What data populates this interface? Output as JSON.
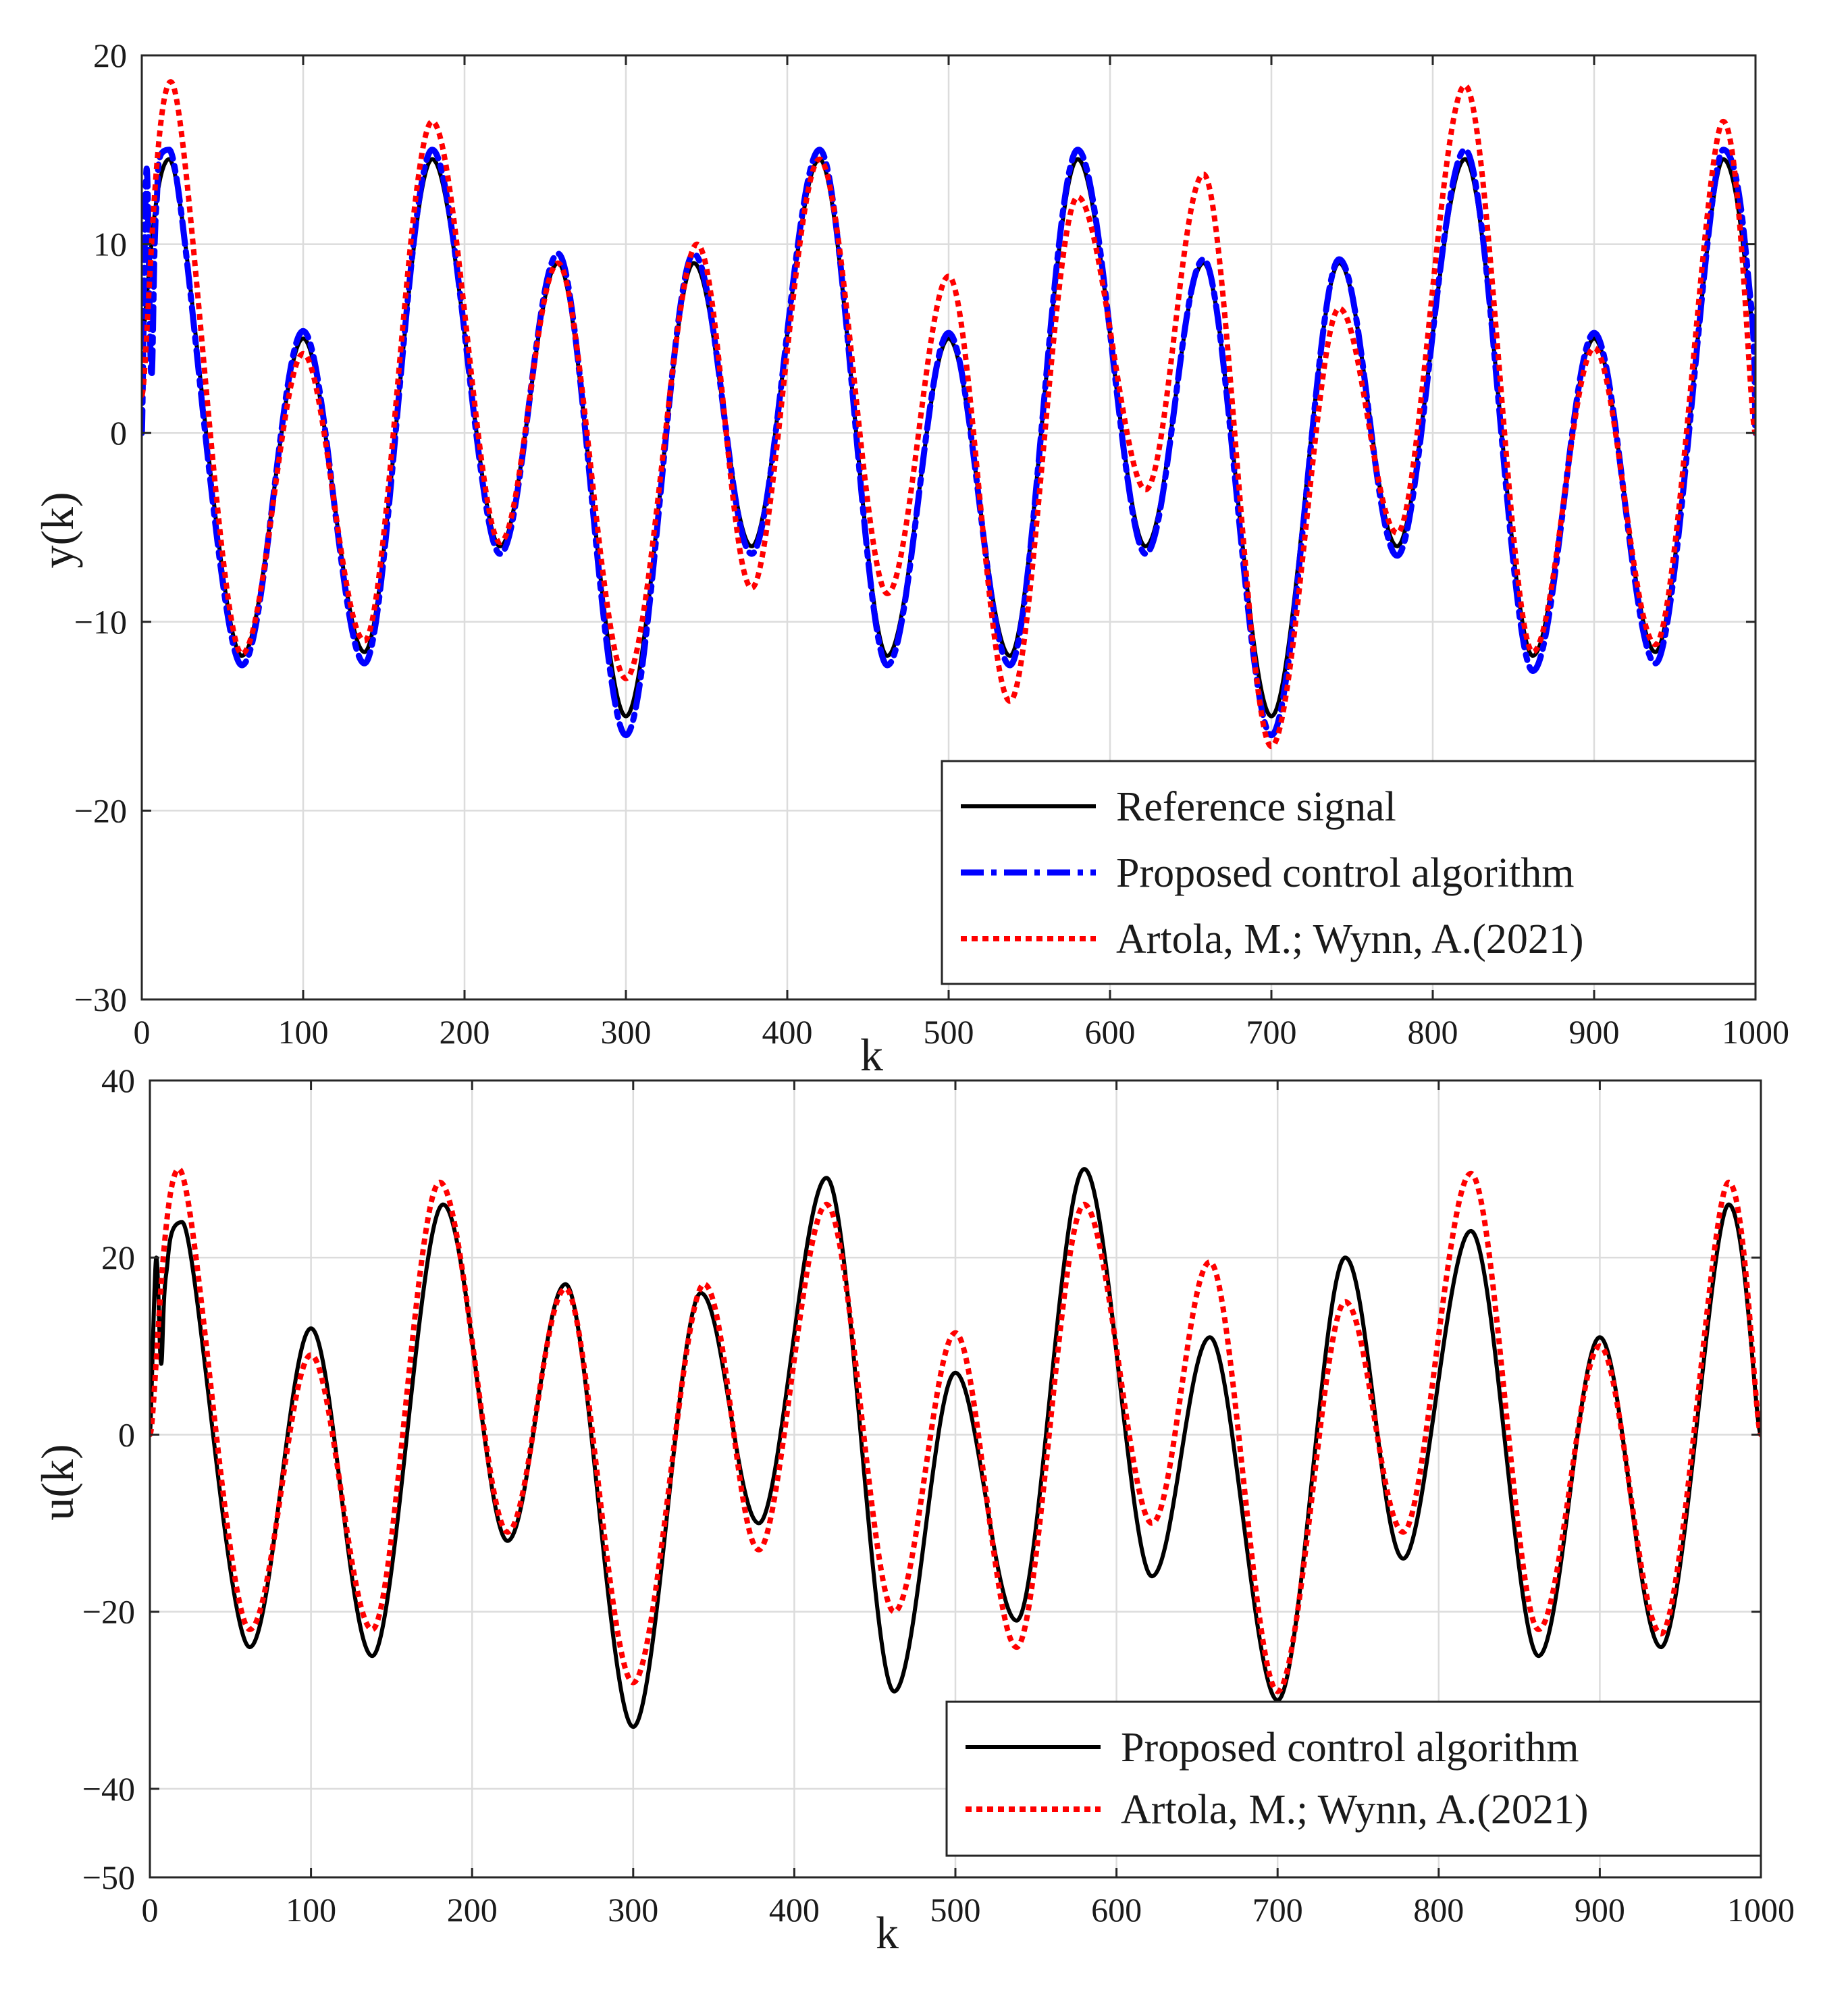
{
  "chart_data": [
    {
      "type": "line",
      "id": "top",
      "xlabel": "k",
      "ylabel": "y(k)",
      "xlim": [
        0,
        1000
      ],
      "ylim": [
        -30,
        20
      ],
      "xticks": [
        0,
        100,
        200,
        300,
        400,
        500,
        600,
        700,
        800,
        900,
        1000
      ],
      "yticks": [
        -30,
        -20,
        -10,
        0,
        10,
        20
      ],
      "grid": true,
      "legend_position": "bottom-right",
      "series": [
        {
          "name": "Reference signal",
          "color": "#000000",
          "style": "solid",
          "points": [
            [
              0,
              5
            ],
            [
              17,
              14.5
            ],
            [
              62,
              -11.8
            ],
            [
              100,
              5
            ],
            [
              138,
              -11.6
            ],
            [
              180,
              14.5
            ],
            [
              222,
              -6
            ],
            [
              258,
              9
            ],
            [
              300,
              -15
            ],
            [
              342,
              9
            ],
            [
              378,
              -6
            ],
            [
              420,
              14.5
            ],
            [
              462,
              -11.8
            ],
            [
              500,
              5
            ],
            [
              538,
              -11.8
            ],
            [
              580,
              14.5
            ],
            [
              622,
              -6
            ],
            [
              658,
              9
            ],
            [
              700,
              -15
            ],
            [
              742,
              9
            ],
            [
              778,
              -6
            ],
            [
              820,
              14.5
            ],
            [
              862,
              -11.8
            ],
            [
              900,
              5
            ],
            [
              938,
              -11.6
            ],
            [
              980,
              14.5
            ],
            [
              1000,
              5
            ]
          ]
        },
        {
          "name": "Proposed control algorithm",
          "color": "#0000ff",
          "style": "dashdot",
          "points": [
            [
              0,
              0
            ],
            [
              3,
              14
            ],
            [
              6,
              3
            ],
            [
              9,
              12
            ],
            [
              17,
              15
            ],
            [
              62,
              -12.3
            ],
            [
              100,
              5.4
            ],
            [
              138,
              -12.2
            ],
            [
              180,
              15
            ],
            [
              222,
              -6.4
            ],
            [
              258,
              9.5
            ],
            [
              300,
              -16
            ],
            [
              342,
              9.5
            ],
            [
              378,
              -6.4
            ],
            [
              420,
              15
            ],
            [
              462,
              -12.3
            ],
            [
              500,
              5.3
            ],
            [
              538,
              -12.3
            ],
            [
              580,
              15
            ],
            [
              622,
              -6.4
            ],
            [
              658,
              9.2
            ],
            [
              700,
              -16
            ],
            [
              742,
              9.2
            ],
            [
              778,
              -6.5
            ],
            [
              820,
              15
            ],
            [
              862,
              -12.6
            ],
            [
              900,
              5.3
            ],
            [
              938,
              -12.2
            ],
            [
              980,
              15
            ],
            [
              997,
              7
            ],
            [
              1000,
              0
            ]
          ]
        },
        {
          "name": "Artola, M.; Wynn, A.(2021)",
          "color": "#ff0000",
          "style": "dotted",
          "points": [
            [
              0,
              2
            ],
            [
              18,
              18.6
            ],
            [
              62,
              -11.7
            ],
            [
              100,
              4.2
            ],
            [
              138,
              -11
            ],
            [
              180,
              16.5
            ],
            [
              222,
              -5.8
            ],
            [
              258,
              9
            ],
            [
              300,
              -13
            ],
            [
              344,
              10
            ],
            [
              378,
              -8.2
            ],
            [
              420,
              14.5
            ],
            [
              462,
              -8.5
            ],
            [
              500,
              8.3
            ],
            [
              538,
              -14.2
            ],
            [
              580,
              12.5
            ],
            [
              622,
              -3
            ],
            [
              658,
              13.7
            ],
            [
              700,
              -16.6
            ],
            [
              742,
              6.6
            ],
            [
              778,
              -5.3
            ],
            [
              820,
              18.4
            ],
            [
              862,
              -11.6
            ],
            [
              900,
              4.5
            ],
            [
              938,
              -11.2
            ],
            [
              980,
              16.5
            ],
            [
              1000,
              0
            ]
          ]
        }
      ]
    },
    {
      "type": "line",
      "id": "bottom",
      "xlabel": "k",
      "ylabel": "u(k)",
      "xlim": [
        0,
        1000
      ],
      "ylim": [
        -50,
        40
      ],
      "xticks": [
        0,
        100,
        200,
        300,
        400,
        500,
        600,
        700,
        800,
        900,
        1000
      ],
      "yticks": [
        -50,
        -40,
        -20,
        0,
        20,
        40
      ],
      "grid": true,
      "legend_position": "bottom-right",
      "series": [
        {
          "name": "Proposed control algorithm",
          "color": "#000000",
          "style": "solid",
          "points": [
            [
              0,
              0
            ],
            [
              4,
              20
            ],
            [
              7,
              8
            ],
            [
              10,
              18
            ],
            [
              20,
              24
            ],
            [
              62,
              -24
            ],
            [
              100,
              12
            ],
            [
              138,
              -25
            ],
            [
              182,
              26
            ],
            [
              222,
              -12
            ],
            [
              258,
              17
            ],
            [
              300,
              -33
            ],
            [
              342,
              16
            ],
            [
              378,
              -10
            ],
            [
              420,
              29
            ],
            [
              462,
              -29
            ],
            [
              500,
              7
            ],
            [
              538,
              -21
            ],
            [
              580,
              30
            ],
            [
              622,
              -16
            ],
            [
              658,
              11
            ],
            [
              700,
              -30
            ],
            [
              742,
              20
            ],
            [
              778,
              -14
            ],
            [
              820,
              23
            ],
            [
              862,
              -25
            ],
            [
              900,
              11
            ],
            [
              938,
              -24
            ],
            [
              980,
              26
            ],
            [
              1000,
              0
            ]
          ]
        },
        {
          "name": "Artola, M.; Wynn, A.(2021)",
          "color": "#ff0000",
          "style": "dotted",
          "points": [
            [
              0,
              0
            ],
            [
              18,
              30
            ],
            [
              62,
              -22
            ],
            [
              100,
              9
            ],
            [
              138,
              -22
            ],
            [
              180,
              28.5
            ],
            [
              222,
              -11
            ],
            [
              258,
              16.5
            ],
            [
              300,
              -28
            ],
            [
              344,
              17
            ],
            [
              378,
              -13
            ],
            [
              420,
              26
            ],
            [
              462,
              -20
            ],
            [
              500,
              11.5
            ],
            [
              538,
              -24
            ],
            [
              580,
              26
            ],
            [
              622,
              -10
            ],
            [
              658,
              19.5
            ],
            [
              700,
              -29
            ],
            [
              742,
              15
            ],
            [
              778,
              -11
            ],
            [
              820,
              29.5
            ],
            [
              862,
              -22
            ],
            [
              900,
              10
            ],
            [
              938,
              -22.5
            ],
            [
              980,
              28.5
            ],
            [
              1000,
              0
            ]
          ]
        }
      ]
    }
  ]
}
